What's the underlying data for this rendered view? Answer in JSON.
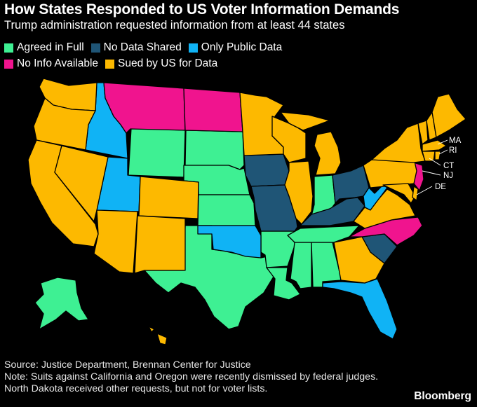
{
  "title": "How States Responded to US Voter Information Demands",
  "subtitle": "Trump administration requested information from at least 44 states",
  "legend": [
    {
      "label": "Agreed in Full",
      "color": "#3ef093"
    },
    {
      "label": "No Data Shared",
      "color": "#1f5576"
    },
    {
      "label": "Only Public Data",
      "color": "#10b3f5"
    },
    {
      "label": "No Info Available",
      "color": "#f0148e"
    },
    {
      "label": "Sued by US for Data",
      "color": "#fdb900"
    }
  ],
  "callouts": {
    "MA": "MA",
    "RI": "RI",
    "CT": "CT",
    "NJ": "NJ",
    "DE": "DE"
  },
  "footer": {
    "source": "Source: Justice Department, Brennan Center for Justice",
    "note": "Note: Suits against California and Oregon were recently dismissed by federal judges. North Dakota received other requests, but not for voter lists."
  },
  "brand": "Bloomberg"
}
